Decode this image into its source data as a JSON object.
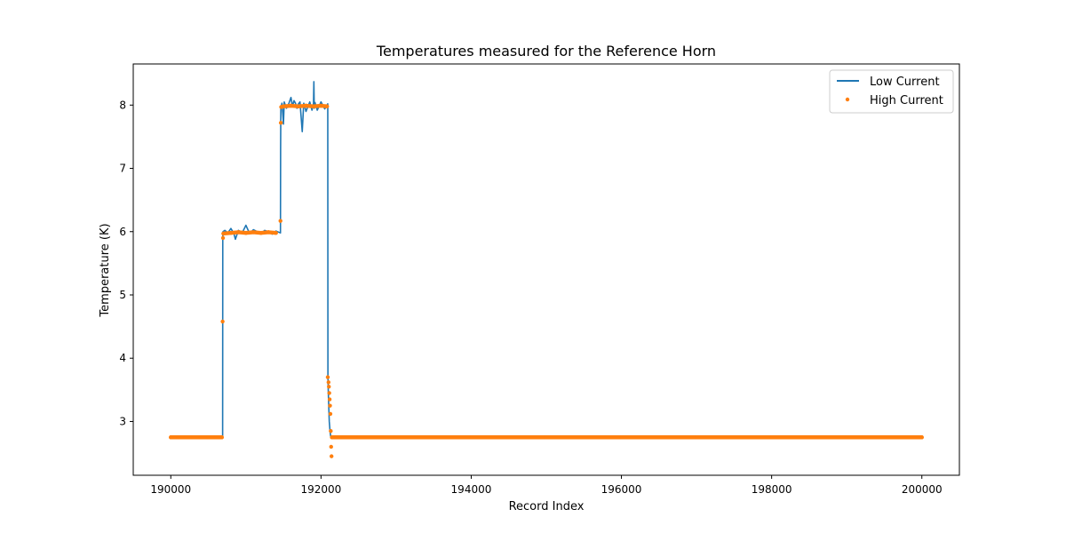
{
  "chart_data": {
    "type": "line",
    "title": "Temperatures measured for the Reference Horn",
    "xlabel": "Record Index",
    "ylabel": "Temperature (K)",
    "xlim": [
      189500,
      200500
    ],
    "ylim": [
      2.15,
      8.65
    ],
    "xticks": [
      190000,
      192000,
      194000,
      196000,
      198000,
      200000
    ],
    "yticks": [
      3,
      4,
      5,
      6,
      7,
      8
    ],
    "grid": false,
    "legend_position": "top-right",
    "colors": {
      "low_current": "#1f77b4",
      "high_current": "#ff7f0e"
    },
    "series": [
      {
        "name": "Low Current",
        "kind": "line",
        "x": [
          190000,
          190200,
          190400,
          190600,
          190690,
          190692,
          190695,
          190720,
          190760,
          190800,
          190840,
          190860,
          190900,
          190950,
          191000,
          191050,
          191100,
          191150,
          191200,
          191250,
          191300,
          191350,
          191400,
          191460,
          191462,
          191465,
          191480,
          191500,
          191510,
          191540,
          191570,
          191600,
          191620,
          191640,
          191660,
          191680,
          191700,
          191720,
          191750,
          191770,
          191800,
          191850,
          191880,
          191900,
          191905,
          191910,
          191915,
          191920,
          191950,
          192000,
          192050,
          192090,
          192092,
          192095,
          192100,
          192110,
          192120,
          192130,
          192150,
          192200,
          192500,
          193000,
          194000,
          195000,
          196000,
          197000,
          198000,
          199000,
          200000
        ],
        "y": [
          2.75,
          2.75,
          2.75,
          2.75,
          2.75,
          5.9,
          6.0,
          6.02,
          5.98,
          6.05,
          5.97,
          5.88,
          6.02,
          5.98,
          6.1,
          5.97,
          6.03,
          6.0,
          5.97,
          6.02,
          6.0,
          5.96,
          6.01,
          5.98,
          7.3,
          7.95,
          8.03,
          7.7,
          8.05,
          7.95,
          8.02,
          8.12,
          7.98,
          8.07,
          8.03,
          7.95,
          8.02,
          8.05,
          7.58,
          8.03,
          7.9,
          8.05,
          7.92,
          8.03,
          8.37,
          7.95,
          8.0,
          8.04,
          7.92,
          8.05,
          7.94,
          8.02,
          3.75,
          3.55,
          3.35,
          3.0,
          2.85,
          2.75,
          2.75,
          2.75,
          2.75,
          2.75,
          2.75,
          2.75,
          2.75,
          2.75,
          2.75,
          2.75,
          2.75
        ]
      },
      {
        "name": "High Current",
        "kind": "scatter",
        "points": [
          [
            190000,
            2.75
          ],
          [
            190100,
            2.75
          ],
          [
            190200,
            2.75
          ],
          [
            190300,
            2.75
          ],
          [
            190400,
            2.75
          ],
          [
            190500,
            2.75
          ],
          [
            190600,
            2.75
          ],
          [
            190680,
            2.75
          ],
          [
            190690,
            4.58
          ],
          [
            190695,
            5.9
          ],
          [
            190700,
            5.97
          ],
          [
            190800,
            5.98
          ],
          [
            190900,
            5.99
          ],
          [
            191000,
            5.98
          ],
          [
            191100,
            5.99
          ],
          [
            191200,
            5.98
          ],
          [
            191300,
            5.99
          ],
          [
            191400,
            5.98
          ],
          [
            191460,
            6.17
          ],
          [
            191465,
            7.72
          ],
          [
            191470,
            7.97
          ],
          [
            191500,
            7.98
          ],
          [
            191600,
            7.99
          ],
          [
            191700,
            7.98
          ],
          [
            191800,
            7.99
          ],
          [
            191900,
            7.98
          ],
          [
            192000,
            7.99
          ],
          [
            192080,
            7.98
          ],
          [
            192090,
            3.7
          ],
          [
            192100,
            3.62
          ],
          [
            192105,
            3.55
          ],
          [
            192110,
            3.45
          ],
          [
            192115,
            3.35
          ],
          [
            192120,
            3.25
          ],
          [
            192125,
            3.12
          ],
          [
            192130,
            2.85
          ],
          [
            192135,
            2.6
          ],
          [
            192140,
            2.45
          ],
          [
            192145,
            2.75
          ],
          [
            192200,
            2.75
          ],
          [
            192300,
            2.75
          ],
          [
            192500,
            2.75
          ],
          [
            193000,
            2.75
          ],
          [
            194000,
            2.75
          ],
          [
            195000,
            2.75
          ],
          [
            196000,
            2.75
          ],
          [
            197000,
            2.75
          ],
          [
            198000,
            2.75
          ],
          [
            199000,
            2.75
          ],
          [
            200000,
            2.75
          ]
        ]
      }
    ]
  }
}
